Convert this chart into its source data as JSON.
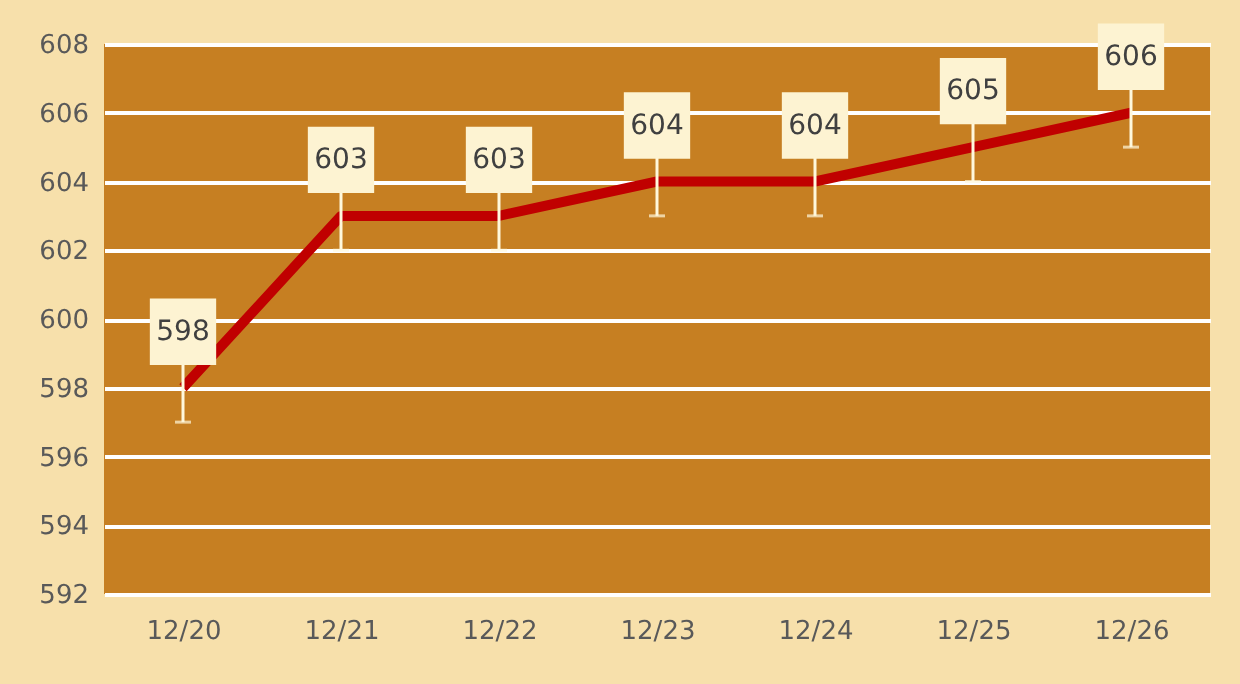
{
  "chart_data": {
    "type": "line",
    "categories": [
      "12/20",
      "12/21",
      "12/22",
      "12/23",
      "12/24",
      "12/25",
      "12/26"
    ],
    "series": [
      {
        "color": "#c00000",
        "values": [
          598,
          603,
          603,
          604,
          604,
          605,
          606
        ],
        "errors": [
          1,
          1,
          1,
          1,
          1,
          1,
          1
        ]
      }
    ],
    "ylim": [
      592,
      608
    ],
    "yticks": [
      592,
      594,
      596,
      598,
      600,
      602,
      604,
      606,
      608
    ],
    "grid": "y",
    "data_labels": true,
    "marker": "none",
    "line_style": "solid"
  }
}
